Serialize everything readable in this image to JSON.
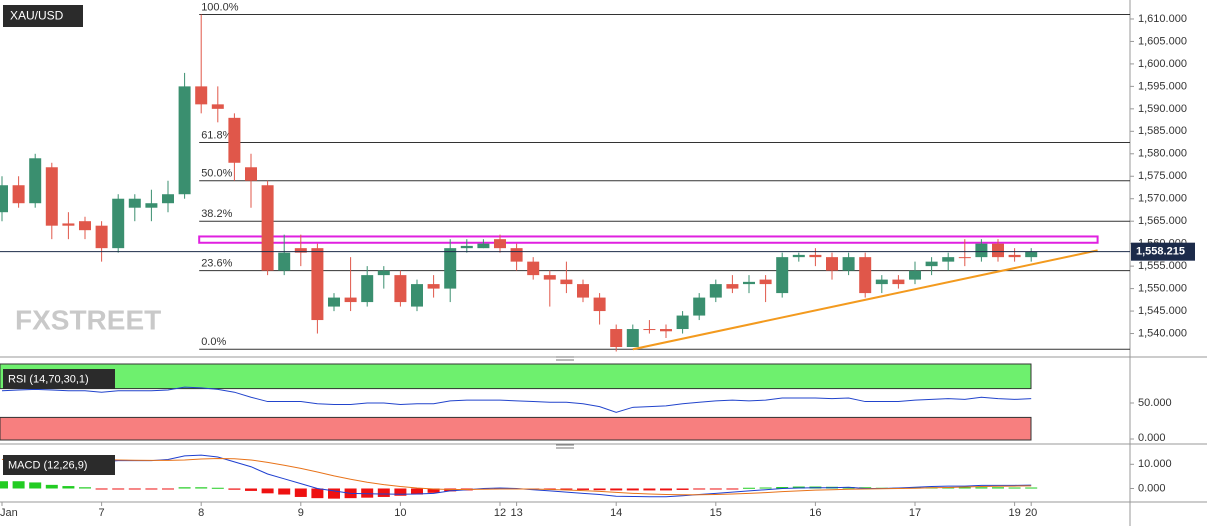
{
  "chart_data": {
    "type": "candlestick",
    "title": "XAU/USD",
    "watermark": "FXSTREET",
    "categories": [
      "Jan",
      null,
      null,
      null,
      null,
      null,
      "7",
      null,
      null,
      null,
      null,
      null,
      "8",
      null,
      null,
      null,
      null,
      null,
      "9",
      null,
      null,
      null,
      null,
      null,
      "10",
      null,
      null,
      null,
      null,
      null,
      "12",
      "13",
      null,
      null,
      null,
      null,
      null,
      "14",
      null,
      null,
      null,
      null,
      null,
      "15",
      null,
      null,
      null,
      null,
      null,
      "16",
      null,
      null,
      null,
      null,
      null,
      "17",
      null,
      null,
      null,
      null,
      null,
      "19",
      "20"
    ],
    "open": [
      1567,
      1573,
      1569,
      1577,
      1564.5,
      1565,
      1564,
      1559,
      1568,
      1568,
      1569,
      1571,
      1595,
      1591,
      1588,
      1577,
      1573,
      1554,
      1559,
      1559,
      1546,
      1548,
      1547,
      1553,
      1553,
      1546,
      1551,
      1550,
      1559,
      1559,
      1561,
      1559,
      1556,
      1553,
      1552,
      1551,
      1548,
      1541,
      1537,
      1541,
      1541,
      1541,
      1544,
      1548,
      1551,
      1551,
      1552,
      1549,
      1557,
      1557.5,
      1557,
      1554,
      1557,
      1551,
      1552,
      1552,
      1555,
      1556,
      1557,
      1557,
      1560,
      1557.5,
      1557
    ],
    "high": [
      1575,
      1575,
      1580,
      1578,
      1567,
      1566,
      1565,
      1571,
      1571,
      1572,
      1574,
      1598,
      1611,
      1595,
      1589,
      1580,
      1574,
      1562,
      1562,
      1560,
      1549,
      1557,
      1555,
      1555,
      1554,
      1552,
      1553,
      1561,
      1561,
      1561,
      1562,
      1560,
      1557,
      1554,
      1556,
      1552,
      1549,
      1542,
      1542,
      1543,
      1542,
      1545,
      1549,
      1552,
      1553,
      1553,
      1553,
      1558,
      1558,
      1559,
      1558,
      1558,
      1558,
      1553,
      1553,
      1556,
      1557,
      1558,
      1561,
      1561,
      1561,
      1559,
      1559
    ],
    "low": [
      1565,
      1568,
      1568,
      1561,
      1561,
      1561,
      1556,
      1558,
      1565,
      1565,
      1567,
      1570,
      1589,
      1587,
      1574,
      1568,
      1553,
      1553,
      1555,
      1540,
      1545,
      1545,
      1546,
      1550,
      1546,
      1545,
      1548,
      1547,
      1558,
      1559,
      1558,
      1554,
      1552,
      1546,
      1549,
      1547,
      1542,
      1536,
      1537,
      1540,
      1539,
      1540,
      1543,
      1547,
      1549,
      1549,
      1547,
      1548,
      1556,
      1555,
      1552,
      1553,
      1548,
      1549,
      1550,
      1551,
      1553,
      1554,
      1555,
      1556,
      1556,
      1556,
      1556
    ],
    "close": [
      1573,
      1569,
      1579,
      1564,
      1564,
      1563,
      1559,
      1570,
      1570,
      1569,
      1571,
      1595,
      1591,
      1590,
      1578,
      1574,
      1554,
      1558,
      1558,
      1543,
      1548,
      1547,
      1553,
      1554,
      1547,
      1551,
      1550,
      1559,
      1559.5,
      1560,
      1559,
      1556,
      1553,
      1552,
      1551,
      1548,
      1545,
      1537,
      1541,
      1541,
      1540.5,
      1544,
      1548,
      1551,
      1550,
      1551.5,
      1551,
      1557,
      1557.5,
      1557,
      1554,
      1557,
      1549,
      1552,
      1551,
      1554,
      1556,
      1557,
      1557,
      1560,
      1557,
      1557,
      1558.2
    ],
    "up_color": "#3a8f6f",
    "down_color": "#e0574a",
    "ylim": [
      1535,
      1614
    ],
    "yticks": [
      {
        "value": 1540,
        "label": "1,540.000"
      },
      {
        "value": 1545,
        "label": "1,545.000"
      },
      {
        "value": 1550,
        "label": "1,550.000"
      },
      {
        "value": 1555,
        "label": "1,555.000"
      },
      {
        "value": 1560,
        "label": "1,560.000"
      },
      {
        "value": 1565,
        "label": "1,565.000"
      },
      {
        "value": 1570,
        "label": "1,570.000"
      },
      {
        "value": 1575,
        "label": "1,575.000"
      },
      {
        "value": 1580,
        "label": "1,580.000"
      },
      {
        "value": 1585,
        "label": "1,585.000"
      },
      {
        "value": 1590,
        "label": "1,590.000"
      },
      {
        "value": 1595,
        "label": "1,595.000"
      },
      {
        "value": 1600,
        "label": "1,600.000"
      },
      {
        "value": 1605,
        "label": "1,605.000"
      },
      {
        "value": 1610,
        "label": "1,610.000"
      }
    ],
    "last_price": {
      "value": 1558.215,
      "label": "1,558.215"
    },
    "fib_levels": [
      {
        "label": "100.0%",
        "value": 1611
      },
      {
        "label": "61.8%",
        "value": 1582.5
      },
      {
        "label": "50.0%",
        "value": 1574
      },
      {
        "label": "38.2%",
        "value": 1565
      },
      {
        "label": "23.6%",
        "value": 1554
      },
      {
        "label": "0.0%",
        "value": 1536.5
      }
    ],
    "zone": {
      "values": [
        1560.2,
        1561.6
      ],
      "color": "#e020e0"
    },
    "trendline": {
      "x": [
        38,
        66
      ],
      "values": [
        1536.5,
        1558.5
      ],
      "color": "#f39a1e"
    },
    "rsi": {
      "label": "RSI (14,70,30,1)",
      "values": [
        67,
        68,
        69,
        68,
        67,
        67,
        65,
        67,
        67,
        67,
        68,
        72,
        71,
        69,
        65,
        58,
        52,
        52,
        52,
        49,
        48,
        48,
        50,
        50,
        48,
        49,
        49,
        53,
        54,
        54,
        54,
        53,
        52,
        51,
        51,
        49,
        45,
        37,
        44,
        45,
        46,
        49,
        51,
        53,
        54,
        53,
        54,
        57,
        57,
        57,
        56,
        57,
        52,
        52,
        52,
        54,
        55,
        56,
        55,
        58,
        56,
        55,
        56
      ],
      "color": "#2244cc",
      "levels": [
        30,
        70
      ],
      "level_colors": [
        "#f77f7f",
        "#6ef06e"
      ],
      "ylim": [
        0,
        100
      ],
      "yticks": [
        {
          "value": 50,
          "label": "50.000"
        },
        {
          "value": 0,
          "label": "0.000"
        }
      ]
    },
    "macd": {
      "label": "MACD (12,26,9)",
      "macd": [
        12,
        13,
        13.5,
        13,
        12,
        11.5,
        11,
        11.5,
        11.5,
        11.5,
        12,
        13.5,
        13.8,
        13,
        11,
        9,
        6,
        4,
        2,
        0,
        -1,
        -2,
        -2.2,
        -2.3,
        -2.4,
        -2.3,
        -2,
        -1,
        -0.5,
        0,
        0.2,
        0,
        -0.5,
        -1,
        -1.5,
        -2,
        -2.5,
        -3.2,
        -3.3,
        -3.4,
        -3.4,
        -3,
        -2.5,
        -2,
        -1.5,
        -1,
        -0.5,
        0,
        0.2,
        0.3,
        0.3,
        0.5,
        0,
        0,
        0.2,
        0.5,
        0.8,
        1,
        1,
        1.3,
        1.3,
        1.3,
        1.4
      ],
      "signal": [
        12,
        12.2,
        12.4,
        12.5,
        12.5,
        12.3,
        12,
        11.8,
        11.7,
        11.6,
        11.6,
        11.8,
        12.2,
        12.4,
        12.3,
        11.8,
        10.8,
        9.6,
        8.3,
        6.8,
        5.2,
        3.8,
        2.6,
        1.6,
        0.8,
        0.2,
        -0.2,
        -0.4,
        -0.4,
        -0.3,
        -0.2,
        -0.2,
        -0.2,
        -0.4,
        -0.6,
        -0.9,
        -1.2,
        -1.6,
        -2,
        -2.3,
        -2.5,
        -2.6,
        -2.6,
        -2.5,
        -2.3,
        -2,
        -1.7,
        -1.3,
        -1,
        -0.7,
        -0.5,
        -0.3,
        -0.2,
        -0.1,
        0,
        0.1,
        0.3,
        0.4,
        0.6,
        0.8,
        0.9,
        1,
        1.1
      ],
      "histogram": [
        3,
        3,
        2.5,
        1.5,
        1,
        0.5,
        -0.2,
        -0.3,
        -0.3,
        -0.3,
        -0.3,
        0.5,
        0.5,
        0.3,
        -0.5,
        -1,
        -2,
        -2.5,
        -3.5,
        -4,
        -4.2,
        -4,
        -3.8,
        -3.5,
        -3,
        -2.5,
        -1.8,
        -1.2,
        -0.8,
        -0.4,
        -0.3,
        -0.2,
        -0.2,
        -0.3,
        -0.5,
        -0.6,
        -0.7,
        -0.8,
        -0.8,
        -0.8,
        -0.8,
        -0.6,
        -0.4,
        -0.3,
        -0.2,
        0.3,
        0.4,
        0.6,
        0.8,
        0.8,
        0.7,
        0.6,
        0.5,
        0.3,
        0.3,
        0.4,
        0.5,
        0.5,
        0.5,
        0.5,
        0.5,
        0.4,
        0.4
      ],
      "macd_color": "#1e3fd0",
      "signal_color": "#e8731a",
      "hist_up_color": "#22cc22",
      "hist_down_color": "#ee1111",
      "ylim": [
        -6,
        15.5
      ],
      "yticks": [
        {
          "value": 10,
          "label": "10.000"
        },
        {
          "value": 0,
          "label": "0.000"
        }
      ]
    }
  }
}
